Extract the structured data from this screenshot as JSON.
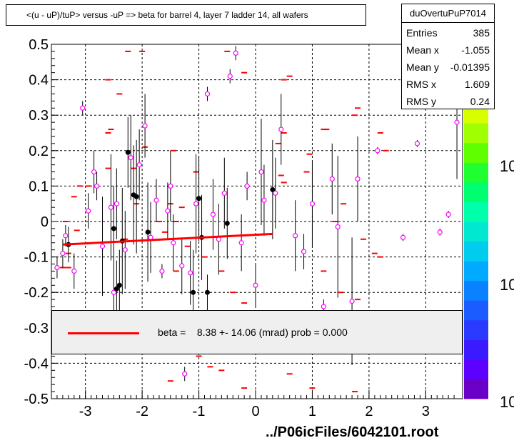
{
  "title": "<(u - uP)/tuP> versus  -uP => beta for barrel 4, layer 7 ladder 14, all wafers",
  "stats": {
    "name": "duOvertuPuP7014",
    "rows": [
      {
        "label": "Entries",
        "value": "385"
      },
      {
        "label": "Mean x",
        "value": "-1.055"
      },
      {
        "label": "Mean y",
        "value": "-0.01395"
      },
      {
        "label": "RMS x",
        "value": "1.609"
      },
      {
        "label": "RMS y",
        "value": "0.24"
      }
    ]
  },
  "legend": {
    "text": "beta =    8.38 +- 14.06 (mrad) prob = 0.000",
    "color": "#ff0000"
  },
  "footer": "../P06icFiles/6042101.root",
  "palette": {
    "labels": [
      "10",
      "10",
      "10"
    ]
  },
  "chart_data": {
    "type": "scatter",
    "xlim": [
      -3.6,
      3.65
    ],
    "ylim": [
      -0.5,
      0.5
    ],
    "xticks": [
      -3,
      -2,
      -1,
      0,
      1,
      2,
      3
    ],
    "yticks": [
      -0.5,
      -0.4,
      -0.3,
      -0.2,
      -0.1,
      0,
      0.1,
      0.2,
      0.3,
      0.4,
      0.5
    ],
    "ytick_labels": [
      "-0.5",
      "-0.4",
      "-0.3",
      "-0.2",
      "-0.1",
      "0",
      "0.1",
      "0.2",
      "0.3",
      "0.4",
      "0.5"
    ],
    "grid": true,
    "fit_line": {
      "x": [
        -3.4,
        0.3
      ],
      "y": [
        -0.065,
        -0.035
      ],
      "color": "#ff0000"
    },
    "dashes": [
      [
        -3.2,
        0.07
      ],
      [
        -3.15,
        -0.025
      ],
      [
        -3.3,
        -0.09
      ],
      [
        -3.4,
        -0.13
      ],
      [
        -3.1,
        0.1
      ],
      [
        -2.95,
        0.1
      ],
      [
        -3.3,
        -0.13
      ],
      [
        -3.35,
        0.0
      ],
      [
        -2.6,
        0.4
      ],
      [
        -2.4,
        0.36
      ],
      [
        -2.25,
        0.48
      ],
      [
        -2.0,
        0.48
      ],
      [
        -2.55,
        0.26
      ],
      [
        -2.6,
        0.25
      ],
      [
        -2.6,
        0.15
      ],
      [
        -2.15,
        0.15
      ],
      [
        -1.95,
        0.21
      ],
      [
        -1.45,
        0.2
      ],
      [
        -1.5,
        0.05
      ],
      [
        -1.4,
        0.0
      ],
      [
        -1.3,
        0.04
      ],
      [
        -1.05,
        0.14
      ],
      [
        -1.2,
        -0.07
      ],
      [
        -1.4,
        -0.14
      ],
      [
        -0.5,
        0.48
      ],
      [
        -0.2,
        0.42
      ],
      [
        0.5,
        0.4
      ],
      [
        0.6,
        0.41
      ],
      [
        0.5,
        0.25
      ],
      [
        0.4,
        0.22
      ],
      [
        0.45,
        0.13
      ],
      [
        0.5,
        0.11
      ],
      [
        0.9,
        0.14
      ],
      [
        0.95,
        0.19
      ],
      [
        1.2,
        0.26
      ],
      [
        1.25,
        0.26
      ],
      [
        1.8,
        0.32
      ],
      [
        1.75,
        0.3
      ],
      [
        2.2,
        0.25
      ],
      [
        2.3,
        0.2
      ],
      [
        1.55,
        0.05
      ],
      [
        1.4,
        0.0
      ],
      [
        1.9,
        -0.05
      ],
      [
        2.1,
        -0.09
      ],
      [
        2.2,
        -0.1
      ],
      [
        1.2,
        -0.14
      ],
      [
        1.5,
        -0.2
      ],
      [
        1.8,
        -0.22
      ],
      [
        -1.0,
        -0.38
      ],
      [
        -0.6,
        -0.42
      ],
      [
        -0.2,
        -0.47
      ],
      [
        0.6,
        -0.43
      ],
      [
        1.0,
        -0.47
      ],
      [
        1.75,
        -0.48
      ],
      [
        -1.5,
        -0.45
      ],
      [
        -0.8,
        -0.41
      ],
      [
        -2.1,
        0.05
      ],
      [
        -2.3,
        -0.05
      ],
      [
        -1.7,
        0.0
      ],
      [
        -1.6,
        -0.03
      ],
      [
        -0.9,
        -0.1
      ],
      [
        -0.6,
        -0.14
      ],
      [
        -0.4,
        -0.2
      ],
      [
        -0.2,
        -0.23
      ]
    ],
    "points": [
      {
        "x": -3.5,
        "y": -0.13,
        "e": 0.03,
        "f": false
      },
      {
        "x": -3.4,
        "y": -0.09,
        "e": 0.04,
        "f": false
      },
      {
        "x": -3.35,
        "y": -0.04,
        "e": 0.03,
        "f": false
      },
      {
        "x": -3.3,
        "y": -0.065,
        "e": 0.05,
        "f": true
      },
      {
        "x": -3.2,
        "y": -0.14,
        "e": 0.05,
        "f": false
      },
      {
        "x": -3.05,
        "y": 0.32,
        "e": 0.02,
        "f": false
      },
      {
        "x": -2.95,
        "y": 0.03,
        "e": 0.05,
        "f": false
      },
      {
        "x": -2.85,
        "y": 0.14,
        "e": 0.06,
        "f": false
      },
      {
        "x": -2.8,
        "y": 0.1,
        "e": 0.04,
        "f": false
      },
      {
        "x": -2.7,
        "y": -0.07,
        "e": 0.14,
        "f": false
      },
      {
        "x": -2.55,
        "y": 0.04,
        "e": 0.15,
        "f": false
      },
      {
        "x": -2.5,
        "y": -0.02,
        "e": 0.12,
        "f": true
      },
      {
        "x": -2.5,
        "y": -0.2,
        "e": 0.06,
        "f": false
      },
      {
        "x": -2.45,
        "y": -0.19,
        "e": 0.08,
        "f": true
      },
      {
        "x": -2.4,
        "y": -0.18,
        "e": 0.1,
        "f": true
      },
      {
        "x": -2.45,
        "y": 0.05,
        "e": 0.1,
        "f": false
      },
      {
        "x": -2.35,
        "y": -0.055,
        "e": 0.15,
        "f": true
      },
      {
        "x": -2.3,
        "y": -0.08,
        "e": 0.11,
        "f": false
      },
      {
        "x": -2.25,
        "y": 0.195,
        "e": 0.1,
        "f": true
      },
      {
        "x": -2.2,
        "y": 0.18,
        "e": 0.12,
        "f": false
      },
      {
        "x": -2.15,
        "y": 0.075,
        "e": 0.14,
        "f": true
      },
      {
        "x": -2.1,
        "y": 0.07,
        "e": 0.16,
        "f": true
      },
      {
        "x": -2.05,
        "y": 0.16,
        "e": 0.1,
        "f": false
      },
      {
        "x": -1.95,
        "y": 0.27,
        "e": 0.09,
        "f": false
      },
      {
        "x": -1.9,
        "y": -0.03,
        "e": 0.14,
        "f": true
      },
      {
        "x": -1.85,
        "y": -0.045,
        "e": 0.1,
        "f": false
      },
      {
        "x": -1.75,
        "y": 0.06,
        "e": 0.06,
        "f": false
      },
      {
        "x": -1.65,
        "y": -0.14,
        "e": 0.02,
        "f": false
      },
      {
        "x": -1.55,
        "y": 0.03,
        "e": 0.08,
        "f": false
      },
      {
        "x": -1.5,
        "y": 0.1,
        "e": 0.1,
        "f": false
      },
      {
        "x": -1.45,
        "y": -0.06,
        "e": 0.08,
        "f": false
      },
      {
        "x": -1.3,
        "y": -0.125,
        "e": 0.08,
        "f": false
      },
      {
        "x": -1.25,
        "y": -0.43,
        "e": 0.02,
        "f": false
      },
      {
        "x": -1.15,
        "y": -0.145,
        "e": 0.09,
        "f": false
      },
      {
        "x": -1.1,
        "y": -0.2,
        "e": 0.12,
        "f": true
      },
      {
        "x": -1.05,
        "y": 0.05,
        "e": 0.14,
        "f": false
      },
      {
        "x": -1.0,
        "y": 0.065,
        "e": 0.12,
        "f": true
      },
      {
        "x": -0.95,
        "y": -0.045,
        "e": 0.12,
        "f": true
      },
      {
        "x": -0.85,
        "y": 0.36,
        "e": 0.02,
        "f": false
      },
      {
        "x": -0.85,
        "y": -0.2,
        "e": 0.05,
        "f": true
      },
      {
        "x": -0.75,
        "y": 0.02,
        "e": 0.1,
        "f": false
      },
      {
        "x": -0.65,
        "y": -0.05,
        "e": 0.1,
        "f": false
      },
      {
        "x": -0.55,
        "y": 0.08,
        "e": 0.1,
        "f": false
      },
      {
        "x": -0.5,
        "y": -0.005,
        "e": 0.1,
        "f": true
      },
      {
        "x": -0.45,
        "y": 0.41,
        "e": 0.02,
        "f": false
      },
      {
        "x": -0.35,
        "y": 0.475,
        "e": 0.02,
        "f": false
      },
      {
        "x": -0.25,
        "y": -0.06,
        "e": 0.08,
        "f": false
      },
      {
        "x": -0.15,
        "y": 0.1,
        "e": 0.04,
        "f": false
      },
      {
        "x": 0.0,
        "y": -0.18,
        "e": 0.06,
        "f": false
      },
      {
        "x": 0.1,
        "y": 0.14,
        "e": 0.15,
        "f": false
      },
      {
        "x": 0.15,
        "y": 0.06,
        "e": 0.1,
        "f": false
      },
      {
        "x": 0.3,
        "y": 0.09,
        "e": 0.14,
        "f": true
      },
      {
        "x": 0.35,
        "y": 0.08,
        "e": 0.1,
        "f": false
      },
      {
        "x": 0.45,
        "y": 0.26,
        "e": 0.1,
        "f": false
      },
      {
        "x": 0.7,
        "y": -0.04,
        "e": 0.1,
        "f": false
      },
      {
        "x": 0.85,
        "y": -0.085,
        "e": 0.05,
        "f": false
      },
      {
        "x": 1.0,
        "y": 0.05,
        "e": 0.12,
        "f": false
      },
      {
        "x": 1.2,
        "y": -0.24,
        "e": 0.02,
        "f": false
      },
      {
        "x": 1.35,
        "y": 0.12,
        "e": 0.1,
        "f": false
      },
      {
        "x": 1.45,
        "y": -0.015,
        "e": 0.2,
        "f": false
      },
      {
        "x": 1.7,
        "y": -0.225,
        "e": 0.18,
        "f": false
      },
      {
        "x": 1.8,
        "y": 0.12,
        "e": 0.12,
        "f": false
      },
      {
        "x": 2.15,
        "y": 0.2,
        "e": 0.01,
        "f": false
      },
      {
        "x": 2.6,
        "y": -0.045,
        "e": 0.01,
        "f": false
      },
      {
        "x": 2.85,
        "y": 0.22,
        "e": 0.01,
        "f": false
      },
      {
        "x": 3.25,
        "y": -0.03,
        "e": 0.01,
        "f": false
      },
      {
        "x": 3.4,
        "y": 0.02,
        "e": 0.01,
        "f": false
      },
      {
        "x": 3.55,
        "y": 0.28,
        "e": 0.16,
        "f": false
      }
    ]
  }
}
